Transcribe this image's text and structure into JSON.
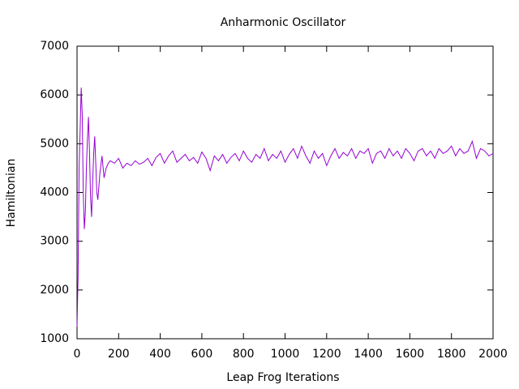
{
  "chart_data": {
    "type": "line",
    "title": "Anharmonic Oscillator",
    "x_label": "Leap Frog Iterations",
    "y_label": "Hamiltonian",
    "color": "#9400d3",
    "x": [
      0,
      5,
      10,
      15,
      20,
      25,
      30,
      35,
      40,
      45,
      50,
      55,
      60,
      65,
      70,
      75,
      80,
      85,
      90,
      95,
      100,
      110,
      120,
      130,
      140,
      150,
      160,
      180,
      200,
      220,
      240,
      260,
      280,
      300,
      320,
      340,
      360,
      380,
      400,
      420,
      440,
      460,
      480,
      500,
      520,
      540,
      560,
      580,
      600,
      620,
      640,
      660,
      680,
      700,
      720,
      740,
      760,
      780,
      800,
      820,
      840,
      860,
      880,
      900,
      920,
      940,
      960,
      980,
      1000,
      1020,
      1040,
      1060,
      1080,
      1100,
      1120,
      1140,
      1160,
      1180,
      1200,
      1220,
      1240,
      1260,
      1280,
      1300,
      1320,
      1340,
      1360,
      1380,
      1400,
      1420,
      1440,
      1460,
      1480,
      1500,
      1520,
      1540,
      1560,
      1580,
      1600,
      1620,
      1640,
      1660,
      1680,
      1700,
      1720,
      1740,
      1760,
      1780,
      1800,
      1820,
      1840,
      1860,
      1880,
      1900,
      1920,
      1940,
      1960,
      1980,
      2000
    ],
    "values": [
      1250,
      2300,
      4500,
      5300,
      6150,
      5600,
      4000,
      3250,
      3600,
      4500,
      5100,
      5550,
      4800,
      3900,
      3500,
      4200,
      4800,
      5150,
      4600,
      4000,
      3850,
      4400,
      4750,
      4300,
      4500,
      4600,
      4650,
      4600,
      4700,
      4500,
      4600,
      4550,
      4650,
      4580,
      4620,
      4700,
      4550,
      4720,
      4800,
      4600,
      4750,
      4850,
      4620,
      4700,
      4780,
      4650,
      4720,
      4600,
      4830,
      4700,
      4450,
      4750,
      4650,
      4780,
      4600,
      4720,
      4800,
      4650,
      4850,
      4700,
      4620,
      4780,
      4700,
      4900,
      4650,
      4780,
      4700,
      4850,
      4620,
      4780,
      4900,
      4700,
      4950,
      4750,
      4600,
      4850,
      4700,
      4800,
      4550,
      4750,
      4900,
      4700,
      4820,
      4750,
      4900,
      4700,
      4850,
      4800,
      4900,
      4600,
      4800,
      4850,
      4700,
      4900,
      4750,
      4850,
      4700,
      4900,
      4800,
      4650,
      4850,
      4900,
      4750,
      4850,
      4700,
      4900,
      4800,
      4850,
      4950,
      4750,
      4900,
      4800,
      4850,
      5050,
      4700,
      4900,
      4850,
      4750,
      4800
    ],
    "xlim": [
      0,
      2000
    ],
    "xticks": [
      0,
      200,
      400,
      600,
      800,
      1000,
      1200,
      1400,
      1600,
      1800,
      2000
    ],
    "ylim": [
      1000,
      7000
    ],
    "yticks": [
      1000,
      2000,
      3000,
      4000,
      5000,
      6000,
      7000
    ]
  }
}
